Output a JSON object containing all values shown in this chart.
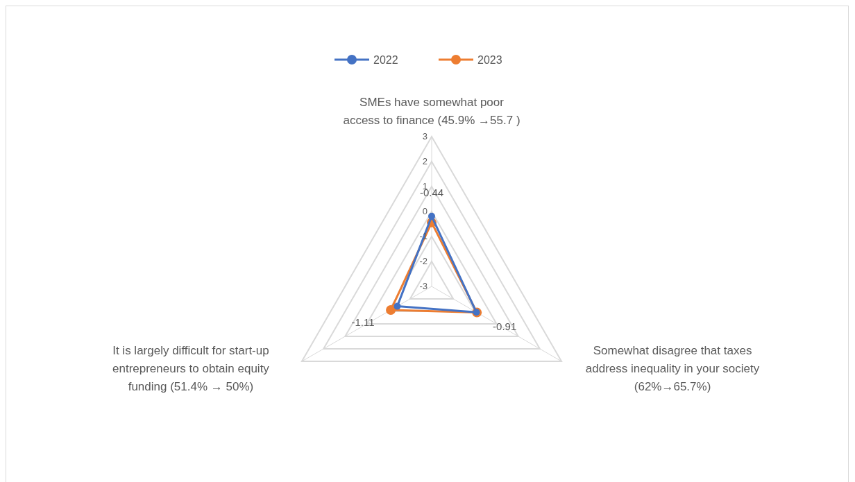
{
  "chart_data": {
    "type": "radar",
    "categories": [
      "SMEs have somewhat poor access to finance (45.9% →55.7 )",
      "Somewhat disagree that taxes address inequality in your society (62%→65.7%)",
      "It is largely difficult for start-up entrepreneurs to obtain equity funding (51.4% → 50%)"
    ],
    "series": [
      {
        "name": "2022",
        "color": "#4472c4",
        "values": [
          -0.19,
          -0.93,
          -1.41
        ]
      },
      {
        "name": "2023",
        "color": "#ed7d31",
        "values": [
          -0.44,
          -0.91,
          -1.11
        ],
        "value_labels": [
          "-0.44",
          "-0.91",
          "-1.11"
        ]
      }
    ],
    "ylim": [
      -3,
      3
    ],
    "yticks": [
      -3,
      -2,
      -1,
      0,
      1,
      2,
      3
    ],
    "grid": true,
    "legend": "top",
    "marker": "circle"
  }
}
